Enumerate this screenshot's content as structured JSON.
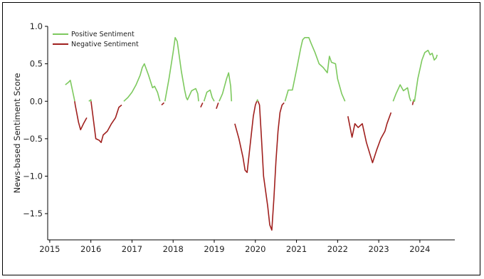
{
  "chart_data": {
    "type": "line",
    "title": "",
    "xlabel": "",
    "ylabel": "News-based Sentiment Score",
    "xlim": [
      2014.95,
      2024.85
    ],
    "ylim": [
      -1.85,
      1.0
    ],
    "x_ticks": [
      2015,
      2016,
      2017,
      2018,
      2019,
      2020,
      2021,
      2022,
      2023,
      2024
    ],
    "x_tick_labels": [
      "2015",
      "2016",
      "2017",
      "2018",
      "2019",
      "2020",
      "2021",
      "2022",
      "2023",
      "2024"
    ],
    "y_ticks": [
      1.0,
      0.5,
      0.0,
      -0.5,
      -1.0,
      -1.5
    ],
    "y_tick_labels": [
      "1.0",
      "0.5",
      "0.0",
      "−0.5",
      "−1.0",
      "−1.5"
    ],
    "grid": false,
    "legend_position": "top-left",
    "series": [
      {
        "name": "Positive Sentiment",
        "color": "#7dc95e"
      },
      {
        "name": "Negative Sentiment",
        "color": "#a0201e"
      }
    ],
    "points": [
      [
        2015.38,
        0.22
      ],
      [
        2015.45,
        0.25
      ],
      [
        2015.5,
        0.28
      ],
      [
        2015.55,
        0.15
      ],
      [
        2015.6,
        0.02
      ],
      [
        2015.62,
        -0.05
      ],
      [
        2015.7,
        -0.28
      ],
      [
        2015.75,
        -0.38
      ],
      [
        2015.82,
        -0.3
      ],
      [
        2015.9,
        -0.22
      ],
      [
        2015.95,
        0.0
      ],
      [
        2016.0,
        0.02
      ],
      [
        2016.05,
        -0.2
      ],
      [
        2016.12,
        -0.5
      ],
      [
        2016.2,
        -0.52
      ],
      [
        2016.25,
        -0.55
      ],
      [
        2016.3,
        -0.45
      ],
      [
        2016.4,
        -0.4
      ],
      [
        2016.5,
        -0.3
      ],
      [
        2016.6,
        -0.22
      ],
      [
        2016.68,
        -0.08
      ],
      [
        2016.75,
        -0.05
      ],
      [
        2016.8,
        0.0
      ],
      [
        2016.9,
        0.05
      ],
      [
        2017.0,
        0.12
      ],
      [
        2017.1,
        0.22
      ],
      [
        2017.2,
        0.35
      ],
      [
        2017.25,
        0.45
      ],
      [
        2017.3,
        0.5
      ],
      [
        2017.4,
        0.35
      ],
      [
        2017.5,
        0.18
      ],
      [
        2017.55,
        0.2
      ],
      [
        2017.62,
        0.12
      ],
      [
        2017.68,
        0.0
      ],
      [
        2017.72,
        -0.05
      ],
      [
        2017.78,
        -0.02
      ],
      [
        2017.8,
        0.0
      ],
      [
        2017.9,
        0.3
      ],
      [
        2018.0,
        0.65
      ],
      [
        2018.05,
        0.85
      ],
      [
        2018.1,
        0.8
      ],
      [
        2018.15,
        0.6
      ],
      [
        2018.2,
        0.4
      ],
      [
        2018.28,
        0.15
      ],
      [
        2018.32,
        0.05
      ],
      [
        2018.35,
        0.02
      ],
      [
        2018.45,
        0.14
      ],
      [
        2018.55,
        0.17
      ],
      [
        2018.6,
        0.1
      ],
      [
        2018.62,
        0.0
      ],
      [
        2018.67,
        -0.08
      ],
      [
        2018.72,
        -0.02
      ],
      [
        2018.75,
        0.0
      ],
      [
        2018.82,
        0.12
      ],
      [
        2018.9,
        0.15
      ],
      [
        2018.95,
        0.05
      ],
      [
        2019.0,
        0.0
      ],
      [
        2019.05,
        -0.1
      ],
      [
        2019.1,
        -0.02
      ],
      [
        2019.12,
        0.0
      ],
      [
        2019.2,
        0.1
      ],
      [
        2019.3,
        0.3
      ],
      [
        2019.35,
        0.38
      ],
      [
        2019.4,
        0.2
      ],
      [
        2019.42,
        0.0
      ],
      [
        2019.5,
        -0.3
      ],
      [
        2019.6,
        -0.5
      ],
      [
        2019.7,
        -0.75
      ],
      [
        2019.75,
        -0.92
      ],
      [
        2019.8,
        -0.95
      ],
      [
        2019.85,
        -0.7
      ],
      [
        2019.9,
        -0.45
      ],
      [
        2019.95,
        -0.2
      ],
      [
        2020.0,
        -0.05
      ],
      [
        2020.05,
        0.02
      ],
      [
        2020.1,
        -0.05
      ],
      [
        2020.15,
        -0.5
      ],
      [
        2020.2,
        -1.0
      ],
      [
        2020.3,
        -1.4
      ],
      [
        2020.35,
        -1.65
      ],
      [
        2020.4,
        -1.72
      ],
      [
        2020.45,
        -1.3
      ],
      [
        2020.5,
        -0.8
      ],
      [
        2020.55,
        -0.4
      ],
      [
        2020.6,
        -0.15
      ],
      [
        2020.65,
        -0.05
      ],
      [
        2020.7,
        -0.02
      ],
      [
        2020.72,
        0.0
      ],
      [
        2020.8,
        0.15
      ],
      [
        2020.9,
        0.15
      ],
      [
        2021.0,
        0.42
      ],
      [
        2021.1,
        0.7
      ],
      [
        2021.15,
        0.82
      ],
      [
        2021.2,
        0.85
      ],
      [
        2021.3,
        0.85
      ],
      [
        2021.35,
        0.78
      ],
      [
        2021.45,
        0.65
      ],
      [
        2021.55,
        0.5
      ],
      [
        2021.65,
        0.45
      ],
      [
        2021.75,
        0.38
      ],
      [
        2021.8,
        0.6
      ],
      [
        2021.85,
        0.52
      ],
      [
        2021.95,
        0.5
      ],
      [
        2022.0,
        0.3
      ],
      [
        2022.1,
        0.1
      ],
      [
        2022.18,
        0.0
      ],
      [
        2022.25,
        -0.2
      ],
      [
        2022.35,
        -0.48
      ],
      [
        2022.42,
        -0.3
      ],
      [
        2022.5,
        -0.35
      ],
      [
        2022.6,
        -0.3
      ],
      [
        2022.7,
        -0.55
      ],
      [
        2022.85,
        -0.82
      ],
      [
        2022.95,
        -0.65
      ],
      [
        2023.05,
        -0.5
      ],
      [
        2023.15,
        -0.4
      ],
      [
        2023.2,
        -0.3
      ],
      [
        2023.3,
        -0.15
      ],
      [
        2023.35,
        0.0
      ],
      [
        2023.42,
        0.1
      ],
      [
        2023.52,
        0.22
      ],
      [
        2023.6,
        0.14
      ],
      [
        2023.7,
        0.18
      ],
      [
        2023.75,
        0.05
      ],
      [
        2023.78,
        0.0
      ],
      [
        2023.82,
        -0.05
      ],
      [
        2023.85,
        0.02
      ],
      [
        2023.87,
        0.0
      ],
      [
        2023.95,
        0.3
      ],
      [
        2024.05,
        0.55
      ],
      [
        2024.12,
        0.65
      ],
      [
        2024.2,
        0.68
      ],
      [
        2024.25,
        0.62
      ],
      [
        2024.3,
        0.64
      ],
      [
        2024.35,
        0.55
      ],
      [
        2024.4,
        0.58
      ],
      [
        2024.42,
        0.62
      ]
    ]
  }
}
